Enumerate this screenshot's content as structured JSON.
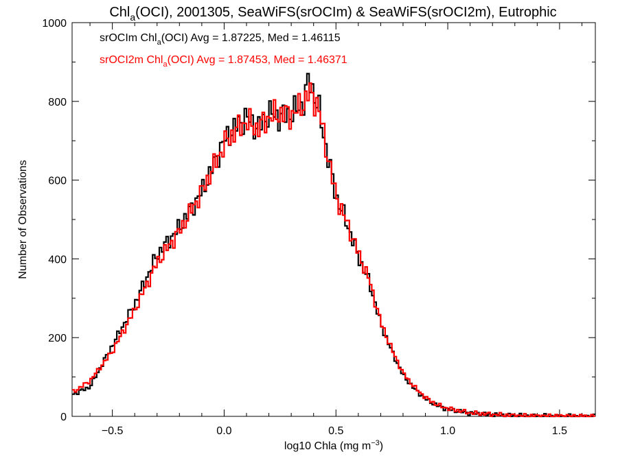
{
  "chart_data": {
    "type": "line",
    "title_parts": [
      "Chl",
      "a",
      "(OCI), 2001305, SeaWiFS(srOCIm) & SeaWiFS(srOCI2m), Eutrophic"
    ],
    "xlabel_parts": [
      "log10 Chla (mg m",
      "−3",
      ")"
    ],
    "ylabel": "Number of Observations",
    "xlim": [
      -0.68,
      1.66
    ],
    "ylim": [
      0,
      1000
    ],
    "xticks": [
      -0.5,
      0.0,
      0.5,
      1.0,
      1.5
    ],
    "xtick_labels": [
      "−0.5",
      "0.0",
      "0.5",
      "1.0",
      "1.5"
    ],
    "yticks": [
      0,
      200,
      400,
      600,
      800,
      1000
    ],
    "ytick_labels": [
      "0",
      "200",
      "400",
      "600",
      "800",
      "1000"
    ],
    "grid": false,
    "legend_placement": "top-left",
    "series": [
      {
        "name_parts": [
          "srOCIm Chl",
          "a",
          "(OCI) Avg = 1.87225, Med = 1.46115"
        ],
        "color": "#000000",
        "points": [
          [
            -0.68,
            55
          ],
          [
            -0.6,
            75
          ],
          [
            -0.5,
            180
          ],
          [
            -0.4,
            285
          ],
          [
            -0.3,
            410
          ],
          [
            -0.2,
            480
          ],
          [
            -0.1,
            570
          ],
          [
            0.0,
            700
          ],
          [
            0.05,
            735
          ],
          [
            0.1,
            760
          ],
          [
            0.15,
            730
          ],
          [
            0.2,
            770
          ],
          [
            0.25,
            760
          ],
          [
            0.3,
            770
          ],
          [
            0.35,
            790
          ],
          [
            0.38,
            855
          ],
          [
            0.42,
            790
          ],
          [
            0.45,
            700
          ],
          [
            0.5,
            560
          ],
          [
            0.55,
            490
          ],
          [
            0.6,
            405
          ],
          [
            0.65,
            340
          ],
          [
            0.7,
            235
          ],
          [
            0.75,
            165
          ],
          [
            0.8,
            105
          ],
          [
            0.85,
            70
          ],
          [
            0.9,
            45
          ],
          [
            0.95,
            28
          ],
          [
            1.0,
            18
          ],
          [
            1.1,
            8
          ],
          [
            1.2,
            4
          ],
          [
            1.3,
            2
          ],
          [
            1.4,
            1
          ],
          [
            1.5,
            0
          ],
          [
            1.66,
            0
          ]
        ]
      },
      {
        "name_parts": [
          "srOCI2m Chl",
          "a",
          "(OCI) Avg = 1.87453, Med = 1.46371"
        ],
        "color": "#ff0000",
        "points": [
          [
            -0.68,
            60
          ],
          [
            -0.6,
            90
          ],
          [
            -0.5,
            165
          ],
          [
            -0.4,
            270
          ],
          [
            -0.3,
            390
          ],
          [
            -0.2,
            470
          ],
          [
            -0.1,
            570
          ],
          [
            0.0,
            690
          ],
          [
            0.05,
            725
          ],
          [
            0.1,
            750
          ],
          [
            0.15,
            730
          ],
          [
            0.2,
            760
          ],
          [
            0.25,
            770
          ],
          [
            0.3,
            765
          ],
          [
            0.35,
            790
          ],
          [
            0.38,
            825
          ],
          [
            0.42,
            790
          ],
          [
            0.45,
            700
          ],
          [
            0.5,
            560
          ],
          [
            0.55,
            490
          ],
          [
            0.6,
            415
          ],
          [
            0.65,
            345
          ],
          [
            0.7,
            240
          ],
          [
            0.75,
            170
          ],
          [
            0.8,
            110
          ],
          [
            0.85,
            75
          ],
          [
            0.9,
            48
          ],
          [
            0.95,
            30
          ],
          [
            1.0,
            20
          ],
          [
            1.1,
            9
          ],
          [
            1.2,
            5
          ],
          [
            1.3,
            2
          ],
          [
            1.4,
            1
          ],
          [
            1.5,
            1
          ],
          [
            1.66,
            0
          ]
        ]
      }
    ]
  }
}
